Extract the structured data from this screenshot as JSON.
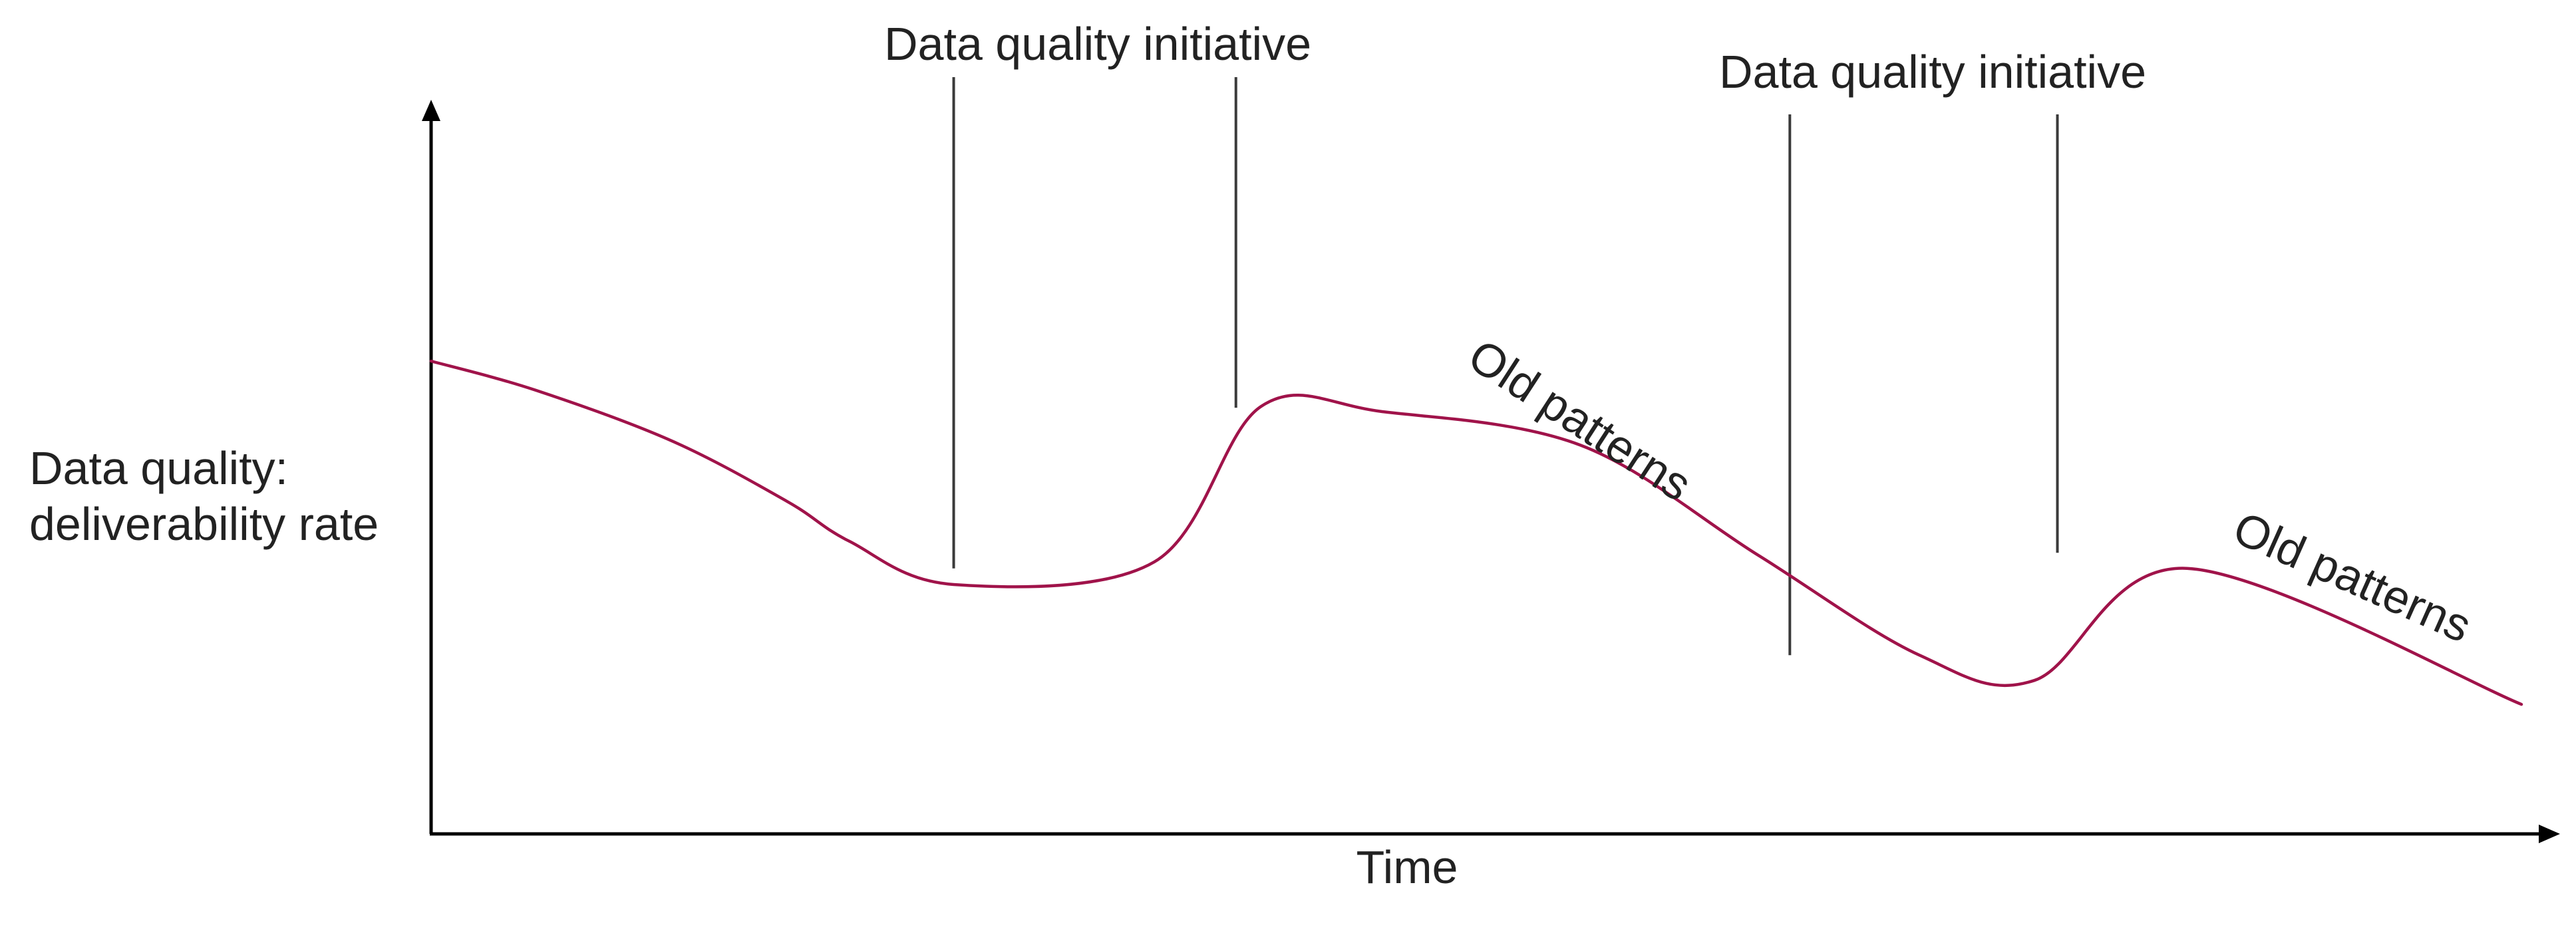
{
  "colors": {
    "curve": "#a0134a",
    "axis": "#000000",
    "text": "#222222",
    "marker": "#3a3a3a"
  },
  "chart_data": {
    "type": "line",
    "ylabel_lines": [
      "Data quality:",
      "deliverability rate"
    ],
    "xlabel": "Time",
    "xlim": [
      0,
      100
    ],
    "ylim": [
      0,
      100
    ],
    "grid": false,
    "legend": "none",
    "series": [
      {
        "x": [
          0,
          5,
          11.5,
          17,
          20,
          25,
          34.6,
          39.7,
          45.5,
          55,
          63.5,
          71.2,
          76.7,
          84,
          100
        ],
        "values": [
          73,
          68.5,
          60.7,
          51.4,
          45.2,
          38.5,
          42,
          66,
          65.2,
          60,
          43,
          27.6,
          23.7,
          41,
          20
        ]
      }
    ],
    "annotations": [
      {
        "type": "vline",
        "x": 25.0,
        "y": 41.0,
        "label_group": 0
      },
      {
        "type": "vline",
        "x": 38.5,
        "y": 65.8,
        "label_group": 0
      },
      {
        "type": "vline",
        "x": 65.0,
        "y": 27.6,
        "label_group": 1
      },
      {
        "type": "vline",
        "x": 77.8,
        "y": 43.4,
        "label_group": 1
      }
    ],
    "annotation_labels": [
      "Data quality initiative",
      "Data quality initiative",
      "Old patterns",
      "Old patterns"
    ]
  }
}
